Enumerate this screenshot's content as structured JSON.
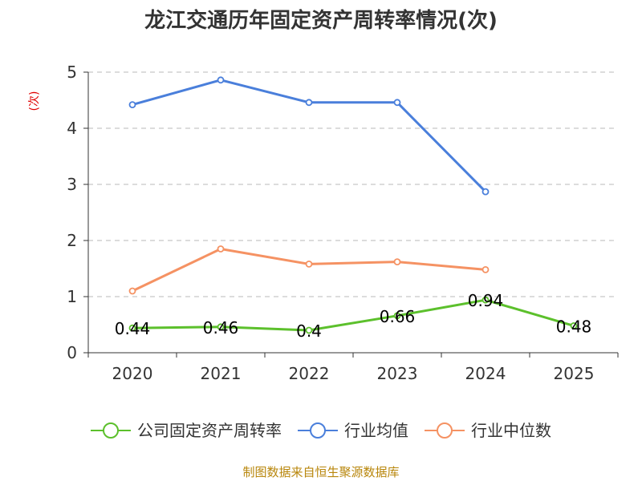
{
  "source_text": "制图数据来自恒生聚源数据库",
  "chart_data": {
    "type": "line",
    "title": "龙江交通历年固定资产周转率情况(次)",
    "ylabel": "(次)",
    "xlabel": "",
    "categories": [
      "2020",
      "2021",
      "2022",
      "2023",
      "2024",
      "2025"
    ],
    "ylim": [
      0,
      5
    ],
    "yticks": [
      0,
      1,
      2,
      3,
      4,
      5
    ],
    "grid": true,
    "legend_position": "bottom",
    "series": [
      {
        "name": "公司固定资产周转率",
        "color": "#5cc02c",
        "values": [
          0.44,
          0.46,
          0.4,
          0.66,
          0.94,
          0.48
        ],
        "labels": [
          "0.44",
          "0.46",
          "0.4",
          "0.66",
          "0.94",
          "0.48"
        ],
        "show_labels": true
      },
      {
        "name": "行业均值",
        "color": "#4a7fdb",
        "values": [
          4.42,
          4.86,
          4.46,
          4.46,
          2.87,
          null
        ],
        "show_labels": false
      },
      {
        "name": "行业中位数",
        "color": "#f59263",
        "values": [
          1.1,
          1.85,
          1.58,
          1.62,
          1.48,
          null
        ],
        "show_labels": false
      }
    ]
  }
}
